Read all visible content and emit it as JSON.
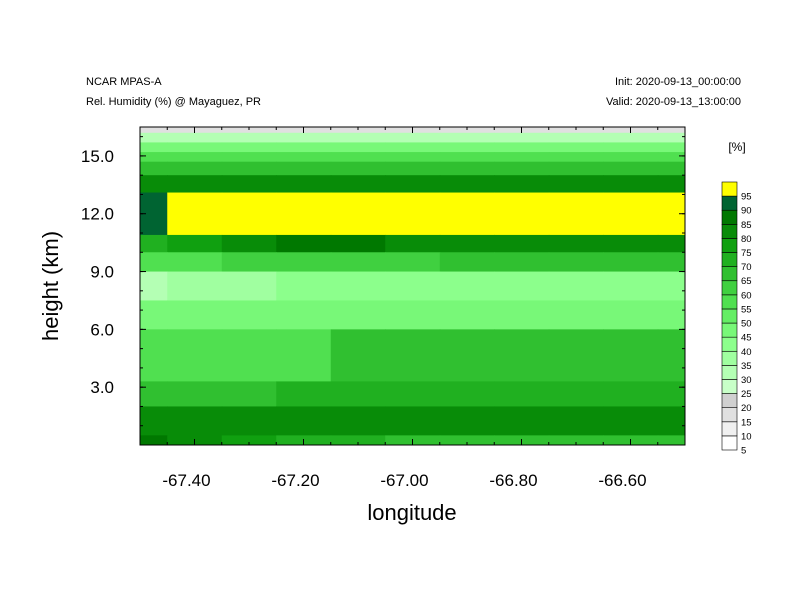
{
  "header": {
    "model": "NCAR MPAS-A",
    "field": "Rel. Humidity (%) @ Mayaguez, PR",
    "init": "Init: 2020-09-13_00:00:00",
    "valid": "Valid: 2020-09-13_13:00:00"
  },
  "chart_data": {
    "type": "heatmap",
    "title": "Rel. Humidity (%) @ Mayaguez, PR",
    "xlabel": "longitude",
    "ylabel": "height (km)",
    "xlim": [
      -67.5,
      -66.5
    ],
    "ylim": [
      0.0,
      16.5
    ],
    "xticks": [
      -67.4,
      -67.2,
      -67.0,
      -66.8,
      -66.6
    ],
    "xtick_labels": [
      "-67.40",
      "-67.20",
      "-67.00",
      "-66.80",
      "-66.60"
    ],
    "yticks": [
      3.0,
      6.0,
      9.0,
      12.0,
      15.0
    ],
    "ytick_labels": [
      "3.0",
      "6.0",
      "9.0",
      "12.0",
      "15.0"
    ],
    "colorbar": {
      "unit_label": "[%]",
      "levels": [
        5,
        10,
        15,
        20,
        25,
        30,
        35,
        40,
        45,
        50,
        55,
        60,
        65,
        70,
        75,
        80,
        85,
        90,
        95
      ],
      "level_labels": [
        "5",
        "10",
        "15",
        "20",
        "25",
        "30",
        "35",
        "40",
        "45",
        "50",
        "55",
        "60",
        "65",
        "70",
        "75",
        "80",
        "85",
        "90",
        "95"
      ],
      "colors": [
        "#ffffff",
        "#f0f0f0",
        "#e0e0e0",
        "#d0d0d0",
        "#c8ffc8",
        "#b4ffb4",
        "#a0ffa0",
        "#8cff8c",
        "#78f878",
        "#64ee64",
        "#50e050",
        "#40d040",
        "#30c030",
        "#20b020",
        "#10a010",
        "#088c08",
        "#007800",
        "#006432",
        "#ffff00"
      ]
    },
    "x": [
      -67.5,
      -67.4,
      -67.3,
      -67.2,
      -67.1,
      -67.0,
      -66.9,
      -66.8,
      -66.7,
      -66.6,
      -66.5
    ],
    "z_description": "relative humidity bands per height level (km) along longitude",
    "bands": [
      {
        "y_bottom": 16.2,
        "y_top": 16.5,
        "rh": [
          15,
          15,
          15,
          15,
          15,
          15,
          15,
          15,
          15,
          15,
          15
        ]
      },
      {
        "y_bottom": 15.7,
        "y_top": 16.2,
        "rh": [
          30,
          30,
          30,
          30,
          30,
          30,
          30,
          30,
          30,
          30,
          30
        ]
      },
      {
        "y_bottom": 15.2,
        "y_top": 15.7,
        "rh": [
          45,
          45,
          45,
          45,
          45,
          45,
          45,
          45,
          45,
          45,
          45
        ]
      },
      {
        "y_bottom": 14.7,
        "y_top": 15.2,
        "rh": [
          55,
          55,
          55,
          55,
          55,
          55,
          55,
          55,
          55,
          55,
          55
        ]
      },
      {
        "y_bottom": 14.0,
        "y_top": 14.7,
        "rh": [
          65,
          65,
          65,
          65,
          65,
          65,
          65,
          65,
          65,
          65,
          65
        ]
      },
      {
        "y_bottom": 13.1,
        "y_top": 14.0,
        "rh": [
          80,
          80,
          80,
          80,
          80,
          80,
          80,
          80,
          80,
          80,
          80
        ]
      },
      {
        "y_bottom": 10.9,
        "y_top": 13.1,
        "rh": [
          90,
          95,
          95,
          95,
          95,
          95,
          95,
          95,
          95,
          95,
          95
        ]
      },
      {
        "y_bottom": 10.0,
        "y_top": 10.9,
        "rh": [
          70,
          75,
          80,
          85,
          85,
          80,
          80,
          80,
          80,
          80,
          80
        ]
      },
      {
        "y_bottom": 9.0,
        "y_top": 10.0,
        "rh": [
          55,
          55,
          60,
          60,
          60,
          60,
          65,
          65,
          65,
          65,
          65
        ]
      },
      {
        "y_bottom": 7.5,
        "y_top": 9.0,
        "rh": [
          30,
          35,
          35,
          40,
          40,
          40,
          40,
          40,
          40,
          40,
          40
        ]
      },
      {
        "y_bottom": 6.0,
        "y_top": 7.5,
        "rh": [
          45,
          45,
          45,
          45,
          45,
          45,
          45,
          45,
          45,
          45,
          45
        ]
      },
      {
        "y_bottom": 3.3,
        "y_top": 6.0,
        "rh": [
          55,
          55,
          55,
          55,
          65,
          65,
          65,
          65,
          65,
          65,
          65
        ]
      },
      {
        "y_bottom": 2.0,
        "y_top": 3.3,
        "rh": [
          65,
          65,
          65,
          70,
          70,
          70,
          70,
          70,
          70,
          70,
          70
        ]
      },
      {
        "y_bottom": 0.5,
        "y_top": 2.0,
        "rh": [
          80,
          80,
          80,
          80,
          80,
          80,
          80,
          80,
          80,
          80,
          80
        ]
      },
      {
        "y_bottom": 0.0,
        "y_top": 0.5,
        "rh": [
          85,
          80,
          75,
          70,
          70,
          65,
          65,
          65,
          65,
          65,
          65
        ]
      }
    ]
  }
}
